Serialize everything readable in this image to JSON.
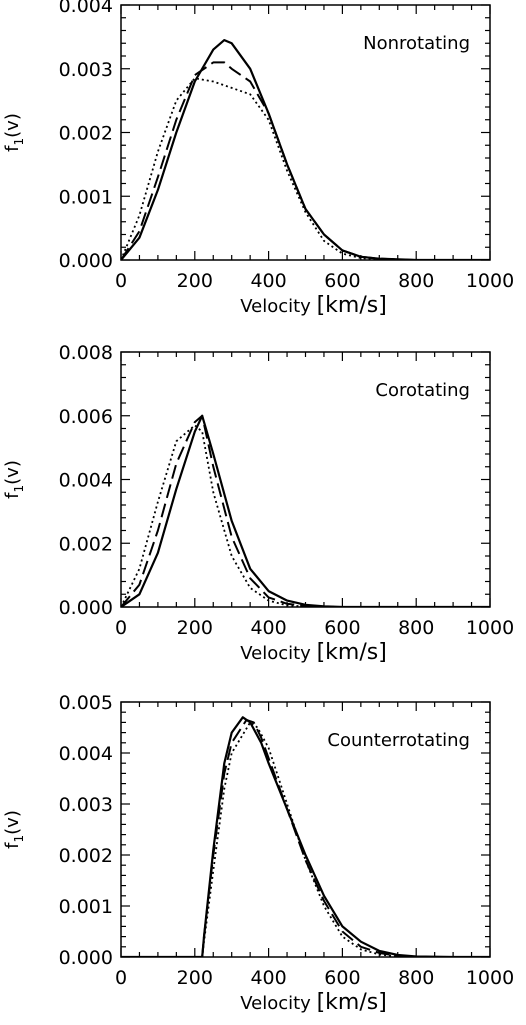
{
  "chart_data": [
    {
      "type": "line",
      "annotation": "Nonrotating",
      "xlabel_main": "Velocity ",
      "xlabel_unit": "[km/s]",
      "ylabel_main": "f",
      "ylabel_sub": "1",
      "ylabel_arg": "(v)",
      "xlim": [
        0,
        1000
      ],
      "ylim": [
        0,
        0.004
      ],
      "xticks": [
        "0",
        "200",
        "400",
        "600",
        "800",
        "1000"
      ],
      "xtick_values": [
        0,
        200,
        400,
        600,
        800,
        1000
      ],
      "yticks": [
        "0.000",
        "0.001",
        "0.002",
        "0.003",
        "0.004"
      ],
      "ytick_values": [
        0,
        0.001,
        0.002,
        0.003,
        0.004
      ],
      "series": [
        {
          "style": "solid",
          "x": [
            0,
            50,
            100,
            150,
            200,
            250,
            280,
            300,
            350,
            400,
            450,
            500,
            550,
            600,
            650,
            700,
            800,
            1000
          ],
          "y": [
            0,
            0.00035,
            0.0011,
            0.002,
            0.0028,
            0.0033,
            0.00345,
            0.0034,
            0.003,
            0.0023,
            0.0015,
            0.0008,
            0.0004,
            0.00015,
            5e-05,
            2e-05,
            0,
            0
          ]
        },
        {
          "style": "dashed",
          "x": [
            0,
            50,
            100,
            150,
            200,
            250,
            280,
            300,
            350,
            400,
            450,
            500,
            550,
            600,
            650,
            700,
            800,
            1000
          ],
          "y": [
            0,
            0.00045,
            0.0013,
            0.0022,
            0.0029,
            0.0031,
            0.0031,
            0.003,
            0.0028,
            0.0023,
            0.0015,
            0.0008,
            0.0004,
            0.00015,
            5e-05,
            2e-05,
            0,
            0
          ]
        },
        {
          "style": "dotted",
          "x": [
            0,
            50,
            100,
            150,
            200,
            250,
            300,
            350,
            400,
            450,
            500,
            550,
            600,
            650,
            700,
            800,
            1000
          ],
          "y": [
            0,
            0.0007,
            0.0017,
            0.0025,
            0.00285,
            0.0028,
            0.0027,
            0.0026,
            0.0022,
            0.0014,
            0.00075,
            0.0003,
            0.0001,
            3e-05,
            1e-05,
            0,
            0
          ]
        }
      ]
    },
    {
      "type": "line",
      "annotation": "Corotating",
      "xlabel_main": "Velocity ",
      "xlabel_unit": "[km/s]",
      "ylabel_main": "f",
      "ylabel_sub": "1",
      "ylabel_arg": "(v)",
      "xlim": [
        0,
        1000
      ],
      "ylim": [
        0,
        0.008
      ],
      "xticks": [
        "0",
        "200",
        "400",
        "600",
        "800",
        "1000"
      ],
      "xtick_values": [
        0,
        200,
        400,
        600,
        800,
        1000
      ],
      "yticks": [
        "0.000",
        "0.002",
        "0.004",
        "0.006",
        "0.008"
      ],
      "ytick_values": [
        0,
        0.002,
        0.004,
        0.006,
        0.008
      ],
      "series": [
        {
          "style": "solid",
          "x": [
            0,
            50,
            100,
            150,
            200,
            220,
            250,
            300,
            350,
            400,
            450,
            500,
            550,
            600,
            700,
            1000
          ],
          "y": [
            0,
            0.0004,
            0.0017,
            0.0037,
            0.0055,
            0.006,
            0.0048,
            0.0027,
            0.0012,
            0.0005,
            0.0002,
            7e-05,
            2e-05,
            0,
            0,
            0
          ]
        },
        {
          "style": "dashed",
          "x": [
            0,
            50,
            100,
            150,
            200,
            220,
            250,
            300,
            350,
            400,
            450,
            500,
            550,
            600,
            700,
            1000
          ],
          "y": [
            0,
            0.0007,
            0.0024,
            0.0045,
            0.0058,
            0.006,
            0.0044,
            0.0022,
            0.0009,
            0.0003,
            0.0001,
            3e-05,
            1e-05,
            0,
            0,
            0
          ]
        },
        {
          "style": "dotted",
          "x": [
            0,
            50,
            100,
            150,
            200,
            220,
            250,
            300,
            350,
            400,
            450,
            500,
            550,
            600,
            700,
            1000
          ],
          "y": [
            0,
            0.0012,
            0.0033,
            0.0052,
            0.0057,
            0.0055,
            0.0036,
            0.0016,
            0.0006,
            0.0002,
            5e-05,
            1e-05,
            0,
            0,
            0,
            0
          ]
        }
      ]
    },
    {
      "type": "line",
      "annotation": "Counterrotating",
      "xlabel_main": "Velocity ",
      "xlabel_unit": "[km/s]",
      "ylabel_main": "f",
      "ylabel_sub": "1",
      "ylabel_arg": "(v)",
      "xlim": [
        0,
        1000
      ],
      "ylim": [
        0,
        0.005
      ],
      "xticks": [
        "0",
        "200",
        "400",
        "600",
        "800",
        "1000"
      ],
      "xtick_values": [
        0,
        200,
        400,
        600,
        800,
        1000
      ],
      "yticks": [
        "0.000",
        "0.001",
        "0.002",
        "0.003",
        "0.004",
        "0.005"
      ],
      "ytick_values": [
        0,
        0.001,
        0.002,
        0.003,
        0.004,
        0.005
      ],
      "series": [
        {
          "style": "solid",
          "x": [
            0,
            220,
            225,
            250,
            280,
            300,
            330,
            350,
            380,
            400,
            450,
            500,
            550,
            600,
            650,
            700,
            750,
            800,
            900,
            1000
          ],
          "y": [
            0,
            0,
            0.0004,
            0.0021,
            0.0038,
            0.0044,
            0.0047,
            0.0046,
            0.0042,
            0.0038,
            0.0029,
            0.002,
            0.0012,
            0.0006,
            0.0003,
            0.00012,
            4e-05,
            1e-05,
            0,
            0
          ]
        },
        {
          "style": "dashed",
          "x": [
            0,
            220,
            225,
            250,
            280,
            300,
            340,
            360,
            380,
            400,
            450,
            500,
            550,
            600,
            650,
            700,
            750,
            800,
            900,
            1000
          ],
          "y": [
            0,
            0,
            0.0004,
            0.002,
            0.0036,
            0.0042,
            0.00465,
            0.0046,
            0.0043,
            0.0039,
            0.0029,
            0.0019,
            0.0011,
            0.0005,
            0.0002,
            8e-05,
            2e-05,
            0,
            0,
            0
          ]
        },
        {
          "style": "dotted",
          "x": [
            0,
            220,
            225,
            250,
            280,
            300,
            350,
            370,
            400,
            450,
            500,
            550,
            600,
            650,
            700,
            750,
            800,
            900,
            1000
          ],
          "y": [
            0,
            0,
            0.0003,
            0.0017,
            0.0033,
            0.004,
            0.0046,
            0.0045,
            0.0041,
            0.003,
            0.0019,
            0.001,
            0.0004,
            0.00015,
            5e-05,
            1e-05,
            0,
            0,
            0
          ]
        }
      ]
    }
  ]
}
